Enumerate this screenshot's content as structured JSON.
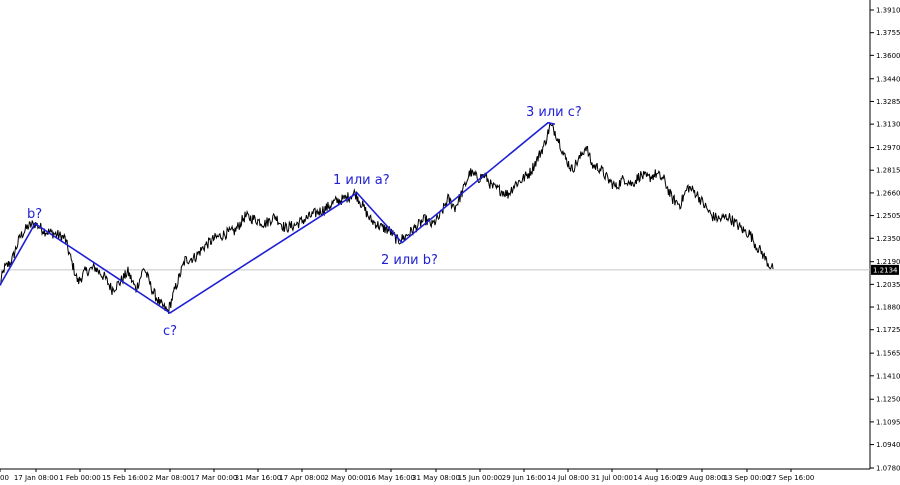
{
  "chart_data": {
    "type": "line",
    "instrument_price_current": "1.2134",
    "y_ticks": [
      "1.3910",
      "1.3755",
      "1.3600",
      "1.3440",
      "1.3285",
      "1.3130",
      "1.2970",
      "1.2815",
      "1.2660",
      "1.2505",
      "1.2350",
      "1.2190",
      "1.2035",
      "1.1880",
      "1.1725",
      "1.1565",
      "1.1410",
      "1.1250",
      "1.1095",
      "1.0940",
      "1.0780"
    ],
    "ylim": [
      1.078,
      1.391
    ],
    "x_ticks": [
      "00",
      "17 Jan 08:00",
      "1 Feb 00:00",
      "15 Feb 16:00",
      "2 Mar 08:00",
      "17 Mar 00:00",
      "31 Mar 16:00",
      "17 Apr 08:00",
      "2 May 00:00",
      "16 May 16:00",
      "31 May 08:00",
      "15 Jun 00:00",
      "29 Jun 16:00",
      "14 Jul 08:00",
      "31 Jul 00:00",
      "14 Aug 16:00",
      "29 Aug 08:00",
      "13 Sep 00:00",
      "27 Sep 16:00"
    ],
    "price_series_anchors": [
      [
        0,
        1.203
      ],
      [
        4,
        1.214
      ],
      [
        12,
        1.22
      ],
      [
        20,
        1.236
      ],
      [
        28,
        1.243
      ],
      [
        35,
        1.245
      ],
      [
        45,
        1.24
      ],
      [
        55,
        1.238
      ],
      [
        65,
        1.235
      ],
      [
        72,
        1.218
      ],
      [
        78,
        1.205
      ],
      [
        85,
        1.212
      ],
      [
        95,
        1.215
      ],
      [
        105,
        1.208
      ],
      [
        112,
        1.2
      ],
      [
        120,
        1.205
      ],
      [
        128,
        1.212
      ],
      [
        136,
        1.2
      ],
      [
        144,
        1.215
      ],
      [
        152,
        1.2
      ],
      [
        160,
        1.19
      ],
      [
        168,
        1.185
      ],
      [
        175,
        1.2
      ],
      [
        185,
        1.22
      ],
      [
        195,
        1.222
      ],
      [
        205,
        1.23
      ],
      [
        215,
        1.235
      ],
      [
        225,
        1.238
      ],
      [
        235,
        1.24
      ],
      [
        245,
        1.25
      ],
      [
        255,
        1.248
      ],
      [
        265,
        1.245
      ],
      [
        275,
        1.25
      ],
      [
        285,
        1.242
      ],
      [
        295,
        1.244
      ],
      [
        305,
        1.248
      ],
      [
        315,
        1.252
      ],
      [
        325,
        1.255
      ],
      [
        335,
        1.26
      ],
      [
        345,
        1.262
      ],
      [
        355,
        1.266
      ],
      [
        362,
        1.258
      ],
      [
        370,
        1.248
      ],
      [
        380,
        1.243
      ],
      [
        390,
        1.24
      ],
      [
        398,
        1.233
      ],
      [
        405,
        1.236
      ],
      [
        415,
        1.242
      ],
      [
        425,
        1.248
      ],
      [
        432,
        1.244
      ],
      [
        440,
        1.25
      ],
      [
        448,
        1.262
      ],
      [
        455,
        1.256
      ],
      [
        462,
        1.266
      ],
      [
        470,
        1.28
      ],
      [
        478,
        1.276
      ],
      [
        485,
        1.278
      ],
      [
        492,
        1.27
      ],
      [
        500,
        1.268
      ],
      [
        508,
        1.265
      ],
      [
        515,
        1.272
      ],
      [
        522,
        1.275
      ],
      [
        530,
        1.28
      ],
      [
        538,
        1.29
      ],
      [
        545,
        1.3
      ],
      [
        550,
        1.312
      ],
      [
        555,
        1.308
      ],
      [
        560,
        1.3
      ],
      [
        565,
        1.29
      ],
      [
        572,
        1.282
      ],
      [
        580,
        1.29
      ],
      [
        586,
        1.298
      ],
      [
        592,
        1.285
      ],
      [
        600,
        1.283
      ],
      [
        608,
        1.275
      ],
      [
        616,
        1.27
      ],
      [
        624,
        1.276
      ],
      [
        632,
        1.272
      ],
      [
        640,
        1.278
      ],
      [
        648,
        1.276
      ],
      [
        656,
        1.279
      ],
      [
        664,
        1.275
      ],
      [
        672,
        1.262
      ],
      [
        680,
        1.258
      ],
      [
        688,
        1.27
      ],
      [
        696,
        1.266
      ],
      [
        704,
        1.258
      ],
      [
        712,
        1.25
      ],
      [
        720,
        1.248
      ],
      [
        728,
        1.25
      ],
      [
        736,
        1.245
      ],
      [
        744,
        1.24
      ],
      [
        750,
        1.238
      ],
      [
        756,
        1.23
      ],
      [
        762,
        1.225
      ],
      [
        768,
        1.218
      ],
      [
        773,
        1.214
      ]
    ],
    "wave_line": [
      [
        0,
        1.203
      ],
      [
        35,
        1.245
      ],
      [
        170,
        1.184
      ],
      [
        357,
        1.266
      ],
      [
        402,
        1.232
      ],
      [
        548,
        1.314
      ],
      [
        555,
        1.313
      ]
    ],
    "annotations": [
      {
        "text": "b?"
      },
      {
        "text": "c?"
      },
      {
        "text": "1 или a?"
      },
      {
        "text": "2 или b?"
      },
      {
        "text": "3 или c?"
      }
    ],
    "colors": {
      "price": "#000000",
      "wave": "#1f1fd6",
      "grid": "#cccccc",
      "tag_bg": "#000000"
    }
  }
}
